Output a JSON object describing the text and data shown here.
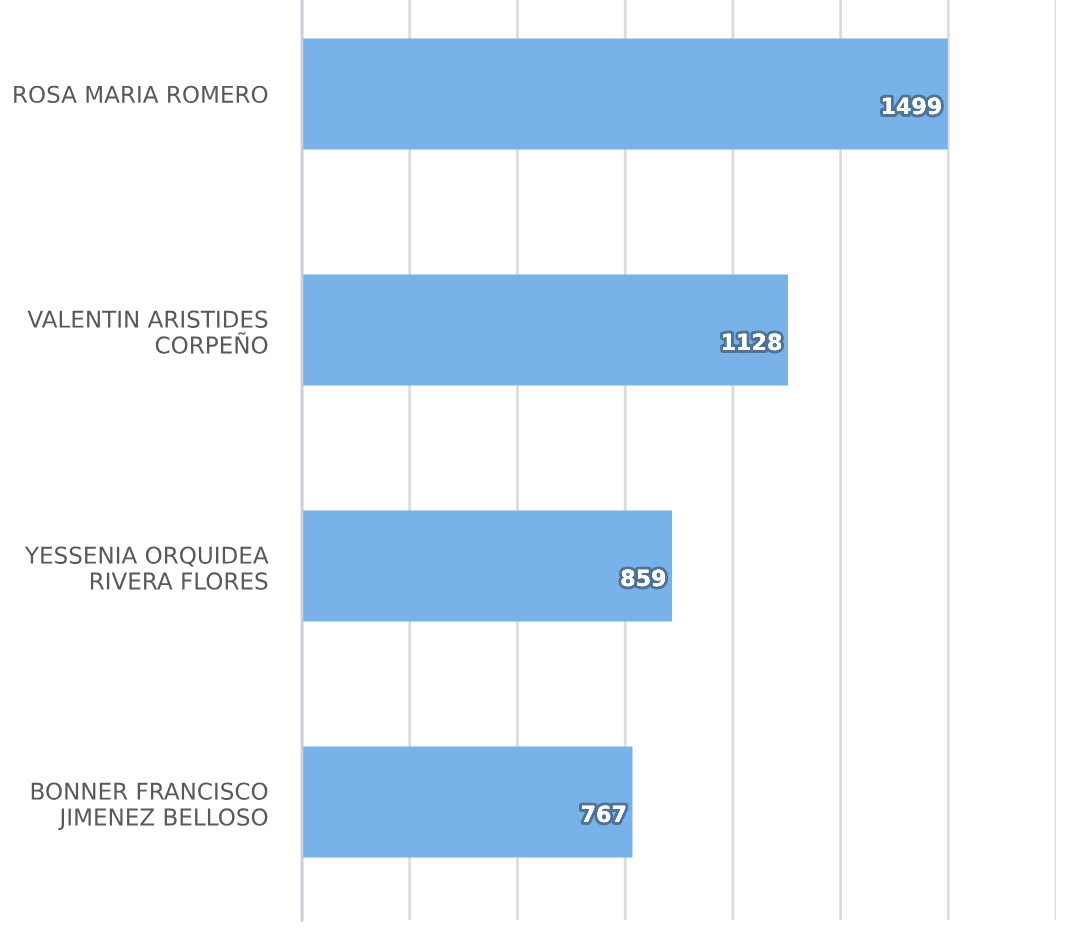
{
  "chart_data": {
    "type": "bar",
    "orientation": "horizontal",
    "categories": [
      "ROSA MARIA ROMERO",
      "VALENTIN ARISTIDES CORPEÑO",
      "YESSENIA ORQUIDEA RIVERA FLORES",
      "BONNER FRANCISCO JIMENEZ BELLOSO"
    ],
    "values": [
      1499,
      1128,
      859,
      767
    ],
    "color": "#79b2e8",
    "xlim": [
      0,
      1750
    ],
    "xticks": [
      {
        "value": 0,
        "label": null
      },
      {
        "value": 250,
        "label": null
      },
      {
        "value": 500,
        "label": null
      },
      {
        "value": 750,
        "label": null
      },
      {
        "value": 1000,
        "label": null
      },
      {
        "value": 1250,
        "label": null
      },
      {
        "value": 1500,
        "label": null
      },
      {
        "value": 1750,
        "label": null
      }
    ],
    "grid": "x",
    "data_labels": true,
    "tick_labels": "y"
  }
}
